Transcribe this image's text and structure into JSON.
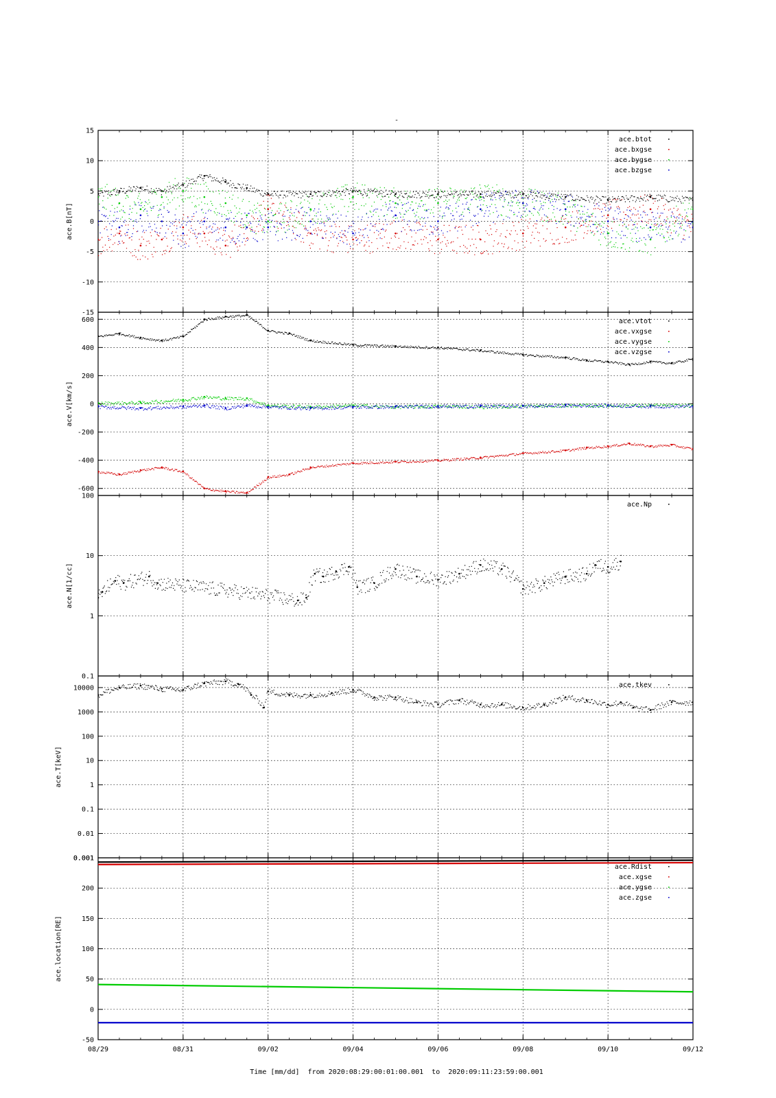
{
  "title": "-",
  "xaxis": {
    "label": "Time [mm/dd]  from 2020:08:29:00:01:00.001  to  2020:09:11:23:59:00.001",
    "ticks": [
      "08/29",
      "08/31",
      "09/02",
      "09/04",
      "09/06",
      "09/08",
      "09/10",
      "09/12"
    ]
  },
  "colors": {
    "black": "#000000",
    "red": "#d40000",
    "green": "#00cc00",
    "blue": "#0000cc"
  },
  "chart_data": [
    {
      "type": "scatter",
      "ylabel": "ace.B[nT]",
      "ylim": [
        -15,
        15
      ],
      "yticks": [
        "15",
        "10",
        "5",
        "0",
        "-5",
        "-10",
        "-15"
      ],
      "yticks_values": [
        15,
        10,
        5,
        0,
        -5,
        -10,
        -15
      ],
      "legend": [
        "ace.btot",
        "ace.bxgse",
        "ace.bygse",
        "ace.bzgse"
      ],
      "legend_placement": "top-right",
      "grid": true,
      "series": [
        {
          "name": "ace.btot",
          "color": "#000000",
          "x": [
            0,
            0.5,
            1,
            1.5,
            2,
            2.5,
            3,
            3.5,
            4,
            5,
            6,
            7,
            8,
            9,
            10,
            11,
            12,
            13,
            14
          ],
          "values": [
            4.5,
            5,
            5.5,
            5,
            6,
            7.5,
            6.5,
            5.5,
            4.5,
            4.5,
            5,
            4.5,
            4.5,
            4.5,
            4.5,
            4,
            3.5,
            4,
            3.5
          ]
        },
        {
          "name": "ace.bxgse",
          "color": "#d40000",
          "x": [
            0,
            0.5,
            1,
            1.5,
            2,
            2.5,
            3,
            3.5,
            4,
            5,
            6,
            7,
            8,
            9,
            10,
            11,
            12,
            13,
            14
          ],
          "values": [
            -3,
            -2,
            -4,
            -3,
            -1,
            -2,
            -4,
            -1,
            2,
            -2,
            -3,
            -2,
            -3,
            -3,
            -2,
            -1,
            1,
            2,
            -1
          ]
        },
        {
          "name": "ace.bygse",
          "color": "#00cc00",
          "x": [
            0,
            0.5,
            1,
            1.5,
            2,
            2.5,
            3,
            3.5,
            4,
            5,
            6,
            7,
            8,
            9,
            10,
            11,
            12,
            13,
            14
          ],
          "values": [
            4,
            3,
            2,
            4,
            5,
            4,
            3,
            1,
            0,
            2,
            4,
            3,
            3,
            4,
            3,
            2,
            -2,
            -3,
            2
          ]
        },
        {
          "name": "ace.bzgse",
          "color": "#0000cc",
          "x": [
            0,
            0.5,
            1,
            1.5,
            2,
            2.5,
            3,
            3.5,
            4,
            5,
            6,
            7,
            8,
            9,
            10,
            11,
            12,
            13,
            14
          ],
          "values": [
            0,
            -1,
            1,
            0,
            -2,
            0,
            -1,
            -1,
            -1,
            0,
            -2,
            1,
            0,
            2,
            3,
            2,
            0,
            -1,
            -1
          ]
        }
      ]
    },
    {
      "type": "scatter",
      "ylabel": "ace.V[km/s]",
      "ylim": [
        -650,
        650
      ],
      "yticks": [
        "600",
        "400",
        "200",
        "0",
        "-200",
        "-400",
        "-600"
      ],
      "yticks_values": [
        600,
        400,
        200,
        0,
        -200,
        -400,
        -600
      ],
      "legend": [
        "ace.vtot",
        "ace.vxgse",
        "ace.vygse",
        "ace.vzgse"
      ],
      "legend_placement": "top-right",
      "grid": true,
      "series": [
        {
          "name": "ace.vtot",
          "color": "#000000",
          "x": [
            0,
            0.5,
            1,
            1.5,
            2,
            2.5,
            3,
            3.5,
            4,
            4.5,
            5,
            6,
            7,
            8,
            9,
            10,
            11,
            11.5,
            12,
            12.5,
            13,
            13.5,
            14
          ],
          "values": [
            480,
            500,
            470,
            450,
            480,
            600,
            620,
            630,
            520,
            500,
            450,
            420,
            410,
            400,
            380,
            350,
            330,
            310,
            300,
            280,
            300,
            290,
            320
          ]
        },
        {
          "name": "ace.vxgse",
          "color": "#d40000",
          "x": [
            0,
            0.5,
            1,
            1.5,
            2,
            2.5,
            3,
            3.5,
            4,
            4.5,
            5,
            6,
            7,
            8,
            9,
            10,
            11,
            11.5,
            12,
            12.5,
            13,
            13.5,
            14
          ],
          "values": [
            -480,
            -500,
            -470,
            -450,
            -480,
            -600,
            -620,
            -630,
            -520,
            -500,
            -450,
            -420,
            -410,
            -400,
            -380,
            -350,
            -330,
            -310,
            -300,
            -280,
            -300,
            -290,
            -320
          ]
        },
        {
          "name": "ace.vygse",
          "color": "#00cc00",
          "x": [
            0,
            1,
            2,
            2.5,
            3,
            3.5,
            4,
            5,
            6,
            7,
            8,
            9,
            10,
            11,
            12,
            13,
            14
          ],
          "values": [
            5,
            10,
            30,
            50,
            40,
            40,
            -10,
            -20,
            -10,
            -20,
            -15,
            -20,
            -15,
            -10,
            -10,
            -10,
            -10
          ]
        },
        {
          "name": "ace.vzgse",
          "color": "#0000cc",
          "x": [
            0,
            1,
            2,
            2.5,
            3,
            3.5,
            4,
            5,
            6,
            7,
            8,
            9,
            10,
            11,
            12,
            13,
            14
          ],
          "values": [
            -20,
            -30,
            -20,
            -10,
            -30,
            -10,
            -20,
            -30,
            -20,
            -20,
            -15,
            -15,
            -15,
            -10,
            -10,
            -15,
            -15
          ]
        }
      ]
    },
    {
      "type": "scatter",
      "ylabel": "ace.N[1/cc]",
      "yscale": "log",
      "ylim": [
        0.1,
        100
      ],
      "yticks": [
        "100",
        "10",
        "1",
        "0.1"
      ],
      "yticks_values": [
        100,
        10,
        1,
        0.1
      ],
      "legend": [
        "ace.Np"
      ],
      "legend_placement": "top-right",
      "grid": true,
      "series": [
        {
          "name": "ace.Np",
          "color": "#000000",
          "x": [
            0,
            0.1,
            0.4,
            0.6,
            1.2,
            1.4,
            4.7,
            4.9,
            5.1,
            5.3,
            5.6,
            5.9,
            6.1,
            6.5,
            7,
            7.5,
            8,
            8.5,
            9,
            9.5,
            10,
            10.5,
            11,
            11.5,
            11.7,
            12,
            12.3
          ],
          "values": [
            2,
            2.5,
            3.8,
            3.5,
            4.5,
            3.5,
            1.8,
            2,
            5,
            4.5,
            5.5,
            6.5,
            3,
            3.5,
            6,
            4.5,
            4,
            5,
            7,
            6,
            2.8,
            3.5,
            4.5,
            5,
            7,
            6.5,
            8
          ]
        }
      ]
    },
    {
      "type": "scatter",
      "ylabel": "ace.T[keV]",
      "yscale": "log",
      "ylim": [
        0.001,
        30000
      ],
      "yticks": [
        "10000",
        "1000",
        "100",
        "10",
        "1",
        "0.1",
        "0.01",
        "0.001"
      ],
      "yticks_values": [
        10000,
        1000,
        100,
        10,
        1,
        0.1,
        0.01,
        0.001
      ],
      "legend": [
        "ace.tkev"
      ],
      "legend_placement": "top-right",
      "grid": true,
      "series": [
        {
          "name": "ace.tkev",
          "color": "#000000",
          "x": [
            0,
            0.5,
            1,
            1.5,
            2,
            2.5,
            3,
            3.3,
            3.6,
            3.9,
            4,
            4.5,
            5,
            5.5,
            6,
            6.5,
            7,
            7.5,
            8,
            8.5,
            9,
            9.5,
            10,
            10.5,
            11,
            11.5,
            12,
            12.3,
            12.6,
            13,
            13.5,
            14
          ],
          "values": [
            5000,
            10000,
            12000,
            9000,
            8000,
            15000,
            18000,
            14000,
            5000,
            1500,
            7000,
            5000,
            5000,
            6000,
            8000,
            4000,
            4000,
            2500,
            2000,
            3000,
            2000,
            2000,
            1500,
            2000,
            4000,
            3000,
            2000,
            2500,
            1500,
            1200,
            2500,
            2500
          ]
        }
      ]
    },
    {
      "type": "line",
      "ylabel": "ace.location[RE]",
      "ylim": [
        -50,
        250
      ],
      "yticks": [
        "200",
        "150",
        "100",
        "50",
        "0",
        "-50"
      ],
      "yticks_values": [
        200,
        150,
        100,
        50,
        0,
        -50
      ],
      "overlap_tick_label": "0.001",
      "legend": [
        "ace.Rdist",
        "ace.xgse",
        "ace.ygse",
        "ace.zgse"
      ],
      "legend_placement": "top-right",
      "grid": true,
      "series": [
        {
          "name": "ace.Rdist",
          "color": "#000000",
          "x": [
            0,
            14
          ],
          "values": [
            243,
            246
          ]
        },
        {
          "name": "ace.xgse",
          "color": "#d40000",
          "x": [
            0,
            14
          ],
          "values": [
            239,
            242
          ]
        },
        {
          "name": "ace.ygse",
          "color": "#00cc00",
          "x": [
            0,
            14
          ],
          "values": [
            41,
            29
          ]
        },
        {
          "name": "ace.zgse",
          "color": "#0000cc",
          "x": [
            0,
            14
          ],
          "values": [
            -22,
            -22
          ]
        }
      ]
    }
  ]
}
